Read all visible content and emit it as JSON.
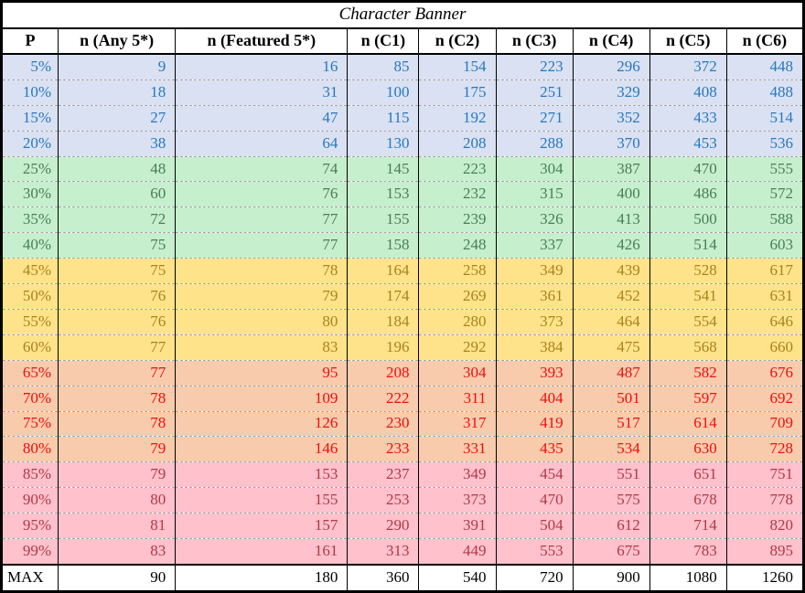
{
  "chart_data": {
    "type": "table",
    "title": "Character Banner",
    "columns": [
      "P",
      "n (Any 5*)",
      "n (Featured 5*)",
      "n (C1)",
      "n (C2)",
      "n (C3)",
      "n (C4)",
      "n (C5)",
      "n (C6)"
    ],
    "bands": {
      "blue": {
        "bg": "#d9e1f2",
        "text": "#2878be"
      },
      "green": {
        "bg": "#c6efce",
        "text": "#4a7e57"
      },
      "yellow": {
        "bg": "#ffe38a",
        "text": "#a9831c"
      },
      "orange": {
        "bg": "#f8cbad",
        "text": "#f20d0d"
      },
      "pink": {
        "bg": "#ffc1cc",
        "text": "#b03945"
      }
    },
    "rows": [
      {
        "p": "5%",
        "band": "blue",
        "values": [
          9,
          16,
          85,
          154,
          223,
          296,
          372,
          448
        ]
      },
      {
        "p": "10%",
        "band": "blue",
        "values": [
          18,
          31,
          100,
          175,
          251,
          329,
          408,
          488
        ]
      },
      {
        "p": "15%",
        "band": "blue",
        "values": [
          27,
          47,
          115,
          192,
          271,
          352,
          433,
          514
        ]
      },
      {
        "p": "20%",
        "band": "blue",
        "values": [
          38,
          64,
          130,
          208,
          288,
          370,
          453,
          536
        ]
      },
      {
        "p": "25%",
        "band": "green",
        "values": [
          48,
          74,
          145,
          223,
          304,
          387,
          470,
          555
        ]
      },
      {
        "p": "30%",
        "band": "green",
        "values": [
          60,
          76,
          153,
          232,
          315,
          400,
          486,
          572
        ]
      },
      {
        "p": "35%",
        "band": "green",
        "values": [
          72,
          77,
          155,
          239,
          326,
          413,
          500,
          588
        ]
      },
      {
        "p": "40%",
        "band": "green",
        "values": [
          75,
          77,
          158,
          248,
          337,
          426,
          514,
          603
        ]
      },
      {
        "p": "45%",
        "band": "yellow",
        "values": [
          75,
          78,
          164,
          258,
          349,
          439,
          528,
          617
        ]
      },
      {
        "p": "50%",
        "band": "yellow",
        "values": [
          76,
          79,
          174,
          269,
          361,
          452,
          541,
          631
        ]
      },
      {
        "p": "55%",
        "band": "yellow",
        "values": [
          76,
          80,
          184,
          280,
          373,
          464,
          554,
          646
        ]
      },
      {
        "p": "60%",
        "band": "yellow",
        "values": [
          77,
          83,
          196,
          292,
          384,
          475,
          568,
          660
        ]
      },
      {
        "p": "65%",
        "band": "orange",
        "values": [
          77,
          95,
          208,
          304,
          393,
          487,
          582,
          676
        ]
      },
      {
        "p": "70%",
        "band": "orange",
        "values": [
          78,
          109,
          222,
          311,
          404,
          501,
          597,
          692
        ]
      },
      {
        "p": "75%",
        "band": "orange",
        "values": [
          78,
          126,
          230,
          317,
          419,
          517,
          614,
          709
        ]
      },
      {
        "p": "80%",
        "band": "orange",
        "values": [
          79,
          146,
          233,
          331,
          435,
          534,
          630,
          728
        ]
      },
      {
        "p": "85%",
        "band": "pink",
        "values": [
          79,
          153,
          237,
          349,
          454,
          551,
          651,
          751
        ]
      },
      {
        "p": "90%",
        "band": "pink",
        "values": [
          80,
          155,
          253,
          373,
          470,
          575,
          678,
          778
        ]
      },
      {
        "p": "95%",
        "band": "pink",
        "values": [
          81,
          157,
          290,
          391,
          504,
          612,
          714,
          820
        ]
      },
      {
        "p": "99%",
        "band": "pink",
        "values": [
          83,
          161,
          313,
          449,
          553,
          675,
          783,
          895
        ]
      }
    ],
    "max_row": {
      "label": "MAX",
      "values": [
        90,
        180,
        360,
        540,
        720,
        900,
        1080,
        1260
      ]
    }
  }
}
